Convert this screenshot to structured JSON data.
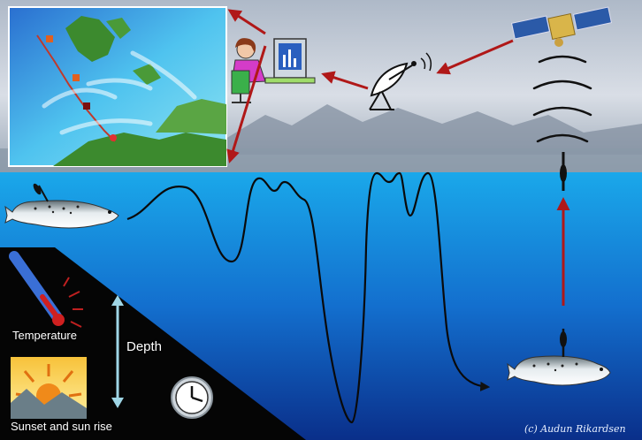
{
  "labels": {
    "temperature": "Temperature",
    "depth": "Depth",
    "sunset": "Sunset and sun rise",
    "credit": "(c) Audun Rikardsen"
  },
  "icons": {
    "map": "migration-map-icon",
    "researcher": "researcher-computer-icon",
    "dish": "satellite-dish-icon",
    "satellite": "satellite-icon",
    "signal": "signal-waves-icon",
    "tag": "pop-up-tag-icon",
    "fish_left": "salmon-icon",
    "fish_right": "salmon-with-tag-icon",
    "thermometer": "thermometer-icon",
    "sun": "sunrise-icon",
    "clock": "clock-icon"
  },
  "colors": {
    "arrow": "#b01818",
    "ocean_top": "#1aa3e6",
    "ocean_bottom": "#0a3590",
    "sky": "#c9d2de",
    "depth_arrow": "#9fd6e6"
  }
}
